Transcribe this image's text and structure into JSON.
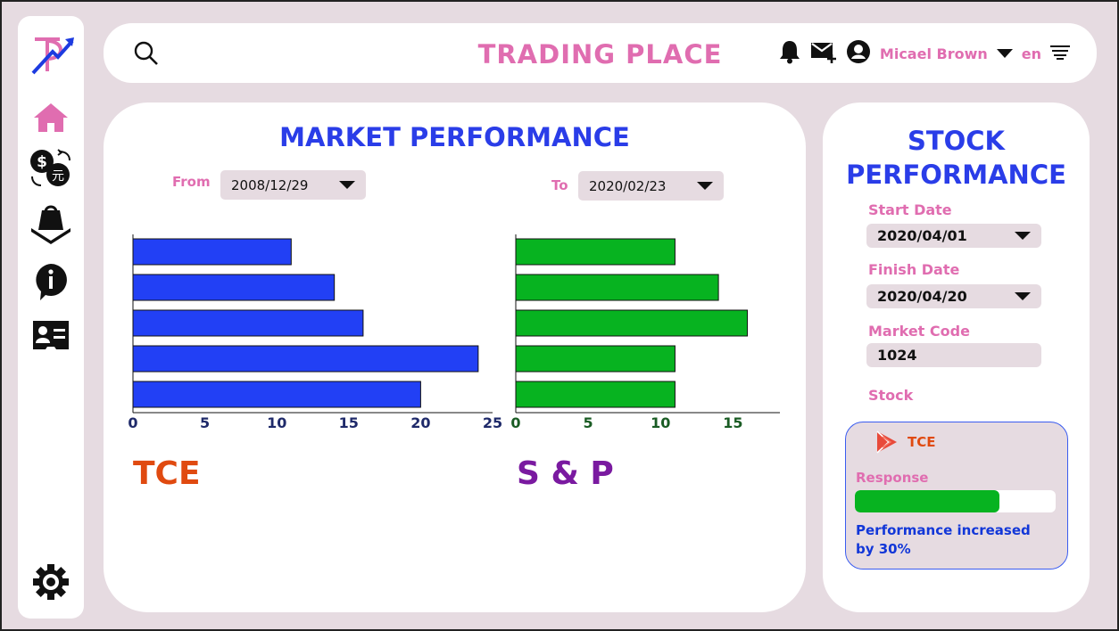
{
  "app": {
    "title": "TRADING PLACE"
  },
  "topbar": {
    "user_name": "Micael Brown",
    "language": "en"
  },
  "sidebar": {
    "items": [
      "home-icon",
      "currency-exchange-icon",
      "shopping-bag-icon",
      "info-icon",
      "contact-card-icon",
      "settings-icon"
    ]
  },
  "market": {
    "title": "MARKET PERFORMANCE",
    "from_label": "From",
    "from_value": "2008/12/29",
    "to_label": "To",
    "to_value": "2020/02/23"
  },
  "stock": {
    "title_line1": "STOCK",
    "title_line2": "PERFORMANCE",
    "start_label": "Start Date",
    "start_value": "2020/04/01",
    "finish_label": "Finish Date",
    "finish_value": "2020/04/20",
    "code_label": "Market Code",
    "code_value": "1024",
    "stock_label": "Stock",
    "card": {
      "name": "TCE",
      "response_label": "Response",
      "response_level": 0.72,
      "message": "Performance increased by 30%"
    }
  },
  "colors": {
    "accent_pink": "#e06db0",
    "accent_blue": "#2a3de8",
    "bar_blue": "#2240f5",
    "bar_green": "#07b320",
    "tce_orange": "#e04a10",
    "sp_purple": "#7a1aa0"
  },
  "chart_data": [
    {
      "type": "bar",
      "orientation": "horizontal",
      "title": "TCE",
      "values": [
        11,
        14,
        16,
        24,
        20
      ],
      "xlim": [
        0,
        25
      ],
      "xticks": [
        0,
        5,
        10,
        15,
        20,
        25
      ],
      "color": "#2240f5",
      "tick_color": "#1f2a6a",
      "name_color": "#e04a10"
    },
    {
      "type": "bar",
      "orientation": "horizontal",
      "title": "S & P",
      "values": [
        11,
        14,
        16,
        11,
        11
      ],
      "xlim": [
        0,
        18
      ],
      "xticks": [
        0,
        5,
        10,
        15
      ],
      "color": "#07b320",
      "tick_color": "#1a5c24",
      "name_color": "#7a1aa0"
    }
  ]
}
